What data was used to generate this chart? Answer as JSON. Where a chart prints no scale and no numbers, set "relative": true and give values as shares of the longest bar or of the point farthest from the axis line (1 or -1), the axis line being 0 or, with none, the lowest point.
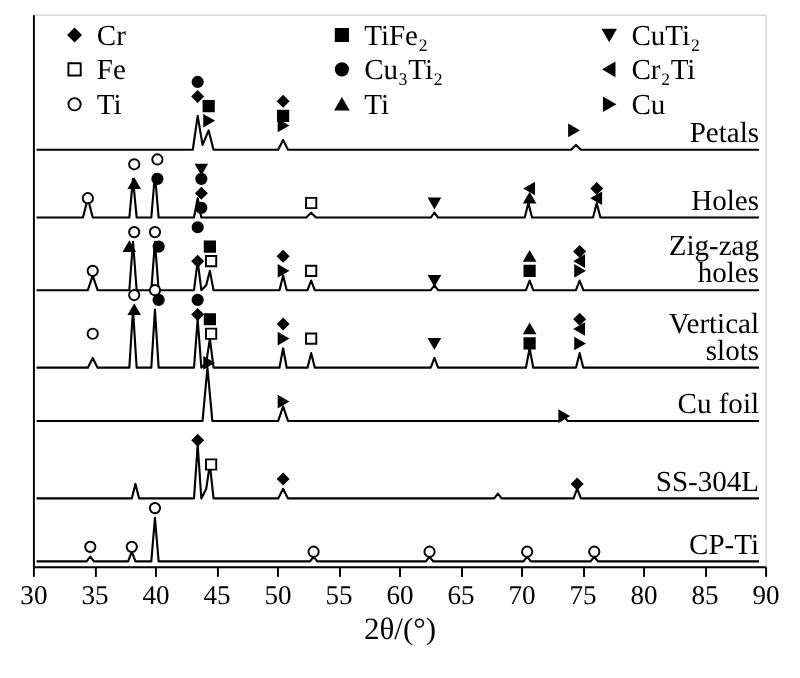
{
  "chart_data": {
    "type": "line",
    "relative": true,
    "xlabel": "2θ/(°)",
    "xlim": [
      30,
      90
    ],
    "xticks": [
      30,
      35,
      40,
      45,
      50,
      55,
      60,
      65,
      70,
      75,
      80,
      85,
      90
    ],
    "grid": false,
    "legend": "top",
    "line_style": "solid",
    "series": [
      {
        "name": "Petals",
        "color": "#000000",
        "x": [
          30.3,
          43.1,
          43.5,
          43.9,
          44.4,
          44.8,
          50.1,
          50.5,
          50.9,
          74.1,
          74.5,
          74.9,
          89.5
        ],
        "values": [
          0.86,
          0.86,
          0.93,
          0.87,
          0.9,
          0.86,
          0.86,
          0.88,
          0.86,
          0.86,
          0.87,
          0.86,
          0.86
        ]
      },
      {
        "name": "Holes",
        "color": "#000000",
        "x": [
          30.3,
          34.1,
          34.5,
          34.9,
          37.9,
          38.2,
          38.5,
          39.7,
          40.0,
          40.3,
          43.2,
          43.5,
          43.8,
          52.4,
          52.8,
          53.2,
          62.6,
          62.9,
          63.2,
          70.3,
          70.6,
          70.9,
          75.9,
          76.2,
          76.5,
          89.5
        ],
        "values": [
          0.72,
          0.72,
          0.76,
          0.72,
          0.72,
          0.8,
          0.72,
          0.72,
          0.81,
          0.72,
          0.72,
          0.76,
          0.72,
          0.72,
          0.73,
          0.72,
          0.72,
          0.73,
          0.72,
          0.72,
          0.75,
          0.72,
          0.72,
          0.75,
          0.72,
          0.72
        ]
      },
      {
        "name": "Zig-zag\nholes",
        "color": "#000000",
        "x": [
          30.3,
          34.5,
          34.9,
          35.3,
          37.9,
          38.2,
          38.5,
          39.7,
          40.0,
          40.3,
          43.2,
          43.5,
          43.8,
          44.2,
          44.5,
          44.8,
          50.2,
          50.5,
          50.8,
          52.5,
          52.8,
          53.1,
          62.6,
          62.9,
          63.2,
          70.4,
          70.7,
          71.0,
          74.5,
          74.8,
          75.1,
          89.5
        ],
        "values": [
          0.57,
          0.57,
          0.6,
          0.57,
          0.57,
          0.67,
          0.57,
          0.57,
          0.67,
          0.57,
          0.57,
          0.63,
          0.57,
          0.58,
          0.61,
          0.57,
          0.57,
          0.6,
          0.57,
          0.57,
          0.59,
          0.57,
          0.57,
          0.58,
          0.57,
          0.57,
          0.59,
          0.57,
          0.57,
          0.59,
          0.57,
          0.57
        ]
      },
      {
        "name": "Vertical\nslots",
        "color": "#000000",
        "x": [
          30.3,
          34.5,
          34.9,
          35.3,
          37.9,
          38.2,
          38.5,
          39.7,
          40.0,
          40.3,
          43.2,
          43.5,
          43.8,
          44.2,
          44.5,
          44.8,
          50.2,
          50.5,
          50.8,
          52.5,
          52.8,
          53.1,
          62.6,
          62.9,
          63.2,
          70.4,
          70.7,
          71.0,
          74.5,
          74.8,
          75.1,
          89.5
        ],
        "values": [
          0.41,
          0.41,
          0.43,
          0.41,
          0.41,
          0.53,
          0.41,
          0.41,
          0.53,
          0.41,
          0.41,
          0.51,
          0.41,
          0.42,
          0.47,
          0.41,
          0.41,
          0.45,
          0.41,
          0.41,
          0.44,
          0.41,
          0.41,
          0.43,
          0.41,
          0.41,
          0.45,
          0.41,
          0.41,
          0.44,
          0.41,
          0.41
        ]
      },
      {
        "name": "Cu foil",
        "color": "#000000",
        "x": [
          30.3,
          43.9,
          44.3,
          44.7,
          50.1,
          50.5,
          50.9,
          73.2,
          73.5,
          73.8,
          89.5
        ],
        "values": [
          0.3,
          0.3,
          0.41,
          0.3,
          0.3,
          0.33,
          0.3,
          0.3,
          0.31,
          0.3,
          0.3
        ]
      },
      {
        "name": "SS-304L",
        "color": "#000000",
        "x": [
          30.3,
          38.1,
          38.4,
          38.7,
          43.2,
          43.5,
          43.8,
          44.2,
          44.5,
          44.8,
          50.1,
          50.5,
          50.9,
          67.8,
          68.1,
          68.4,
          74.3,
          74.6,
          74.9,
          89.5
        ],
        "values": [
          0.14,
          0.14,
          0.17,
          0.14,
          0.14,
          0.25,
          0.14,
          0.16,
          0.21,
          0.14,
          0.14,
          0.16,
          0.14,
          0.14,
          0.15,
          0.14,
          0.14,
          0.16,
          0.14,
          0.14
        ]
      },
      {
        "name": "CP-Ti",
        "color": "#000000",
        "x": [
          30.3,
          34.4,
          34.7,
          35.0,
          37.8,
          38.1,
          38.4,
          39.7,
          40.0,
          40.3,
          52.7,
          53.0,
          53.3,
          62.2,
          62.5,
          62.8,
          70.2,
          70.5,
          70.8,
          75.7,
          76.0,
          76.3,
          89.5
        ],
        "values": [
          0.01,
          0.01,
          0.02,
          0.01,
          0.01,
          0.03,
          0.01,
          0.01,
          0.1,
          0.01,
          0.01,
          0.02,
          0.01,
          0.01,
          0.02,
          0.01,
          0.01,
          0.02,
          0.01,
          0.01,
          0.02,
          0.01,
          0.01
        ]
      },
      {
        "type": "scatter",
        "name": "Cr",
        "color": "#000000",
        "marker": "diamond",
        "x": [
          43.5,
          50.5,
          43.8,
          76.2,
          43.5,
          50.5,
          74.8,
          43.5,
          50.5,
          74.8,
          43.5,
          50.5,
          74.6
        ],
        "values": [
          0.97,
          0.96,
          0.77,
          0.78,
          0.63,
          0.64,
          0.65,
          0.52,
          0.5,
          0.51,
          0.26,
          0.18,
          0.17
        ]
      },
      {
        "type": "scatter",
        "name": "Fe",
        "color": "#ffffff",
        "marker": "square",
        "x": [
          52.8,
          44.6,
          52.8,
          44.6,
          52.8,
          44.6
        ],
        "values": [
          0.75,
          0.63,
          0.61,
          0.48,
          0.47,
          0.21
        ]
      },
      {
        "type": "scatter",
        "name": "Ti",
        "color": "#ffffff",
        "marker": "circle",
        "x": [
          34.5,
          38.3,
          40.2,
          34.9,
          38.3,
          40.0,
          34.9,
          38.3,
          40.0,
          34.7,
          38.1,
          40.0,
          53.0,
          62.5,
          70.5,
          76.0
        ],
        "values": [
          0.76,
          0.83,
          0.84,
          0.61,
          0.69,
          0.69,
          0.48,
          0.56,
          0.57,
          0.04,
          0.04,
          0.12,
          0.03,
          0.03,
          0.03,
          0.03
        ]
      },
      {
        "type": "scatter",
        "name": "TiFe₂",
        "color": "#000000",
        "marker": "square",
        "x": [
          44.4,
          50.5,
          44.5,
          70.7,
          44.5,
          70.7
        ],
        "values": [
          0.95,
          0.93,
          0.66,
          0.61,
          0.51,
          0.46
        ]
      },
      {
        "type": "scatter",
        "name": "Cu₃Ti₂",
        "color": "#000000",
        "marker": "circle",
        "x": [
          43.5,
          40.2,
          43.8,
          43.8,
          40.3,
          43.5,
          40.3,
          43.5
        ],
        "values": [
          1.0,
          0.8,
          0.8,
          0.74,
          0.66,
          0.7,
          0.55,
          0.55
        ]
      },
      {
        "type": "scatter",
        "name": "Ti",
        "color": "#000000",
        "marker": "triangle-up",
        "x": [
          38.3,
          70.7,
          37.9,
          70.7,
          38.3,
          70.7
        ],
        "values": [
          0.79,
          0.76,
          0.66,
          0.64,
          0.53,
          0.49
        ]
      },
      {
        "type": "scatter",
        "name": "CuTi₂",
        "color": "#000000",
        "marker": "triangle-down",
        "x": [
          43.8,
          62.9,
          62.9,
          62.9
        ],
        "values": [
          0.82,
          0.75,
          0.59,
          0.46
        ]
      },
      {
        "type": "scatter",
        "name": "Cr₂Ti",
        "color": "#000000",
        "marker": "triangle-left",
        "x": [
          70.7,
          76.2,
          74.8,
          74.8
        ],
        "values": [
          0.78,
          0.76,
          0.63,
          0.49
        ]
      },
      {
        "type": "scatter",
        "name": "Cu",
        "color": "#000000",
        "marker": "triangle-right",
        "x": [
          44.4,
          50.5,
          74.3,
          50.5,
          74.8,
          50.5,
          74.8,
          44.4,
          50.5,
          73.5
        ],
        "values": [
          0.92,
          0.91,
          0.9,
          0.61,
          0.61,
          0.47,
          0.46,
          0.42,
          0.34,
          0.31
        ]
      }
    ]
  }
}
